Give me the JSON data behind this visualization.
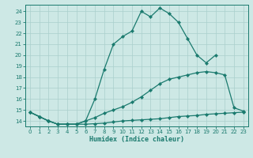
{
  "line1_x": [
    0,
    1,
    2,
    3,
    4,
    5,
    6,
    7,
    8,
    9,
    10,
    11,
    12,
    13,
    14,
    15,
    16,
    17,
    18,
    19,
    20
  ],
  "line1_y": [
    14.8,
    14.4,
    14.0,
    13.7,
    13.7,
    13.7,
    14.0,
    16.0,
    18.7,
    21.0,
    21.7,
    22.2,
    24.0,
    23.5,
    24.3,
    23.8,
    23.0,
    21.5,
    20.0,
    19.3,
    20.0
  ],
  "line2_x": [
    0,
    1,
    2,
    3,
    4,
    5,
    6,
    7,
    8,
    9,
    10,
    11,
    12,
    13,
    14,
    15,
    16,
    17,
    18,
    19,
    20,
    21,
    22,
    23
  ],
  "line2_y": [
    14.8,
    14.4,
    14.0,
    13.7,
    13.7,
    13.7,
    14.0,
    14.3,
    14.7,
    15.0,
    15.3,
    15.7,
    16.2,
    16.8,
    17.4,
    17.8,
    18.0,
    18.2,
    18.4,
    18.5,
    18.4,
    18.2,
    15.2,
    14.9
  ],
  "line3_x": [
    0,
    1,
    2,
    3,
    4,
    5,
    6,
    7,
    8,
    9,
    10,
    11,
    12,
    13,
    14,
    15,
    16,
    17,
    18,
    19,
    20,
    21,
    22,
    23
  ],
  "line3_y": [
    14.8,
    14.4,
    14.0,
    13.7,
    13.7,
    13.7,
    13.7,
    13.75,
    13.8,
    13.9,
    14.0,
    14.05,
    14.1,
    14.15,
    14.2,
    14.3,
    14.4,
    14.45,
    14.5,
    14.6,
    14.65,
    14.7,
    14.75,
    14.8
  ],
  "color": "#1a7a6e",
  "bg_color": "#cde8e5",
  "grid_color": "#aacfcc",
  "xlabel": "Humidex (Indice chaleur)",
  "xlim": [
    -0.5,
    23.5
  ],
  "ylim": [
    13.5,
    24.6
  ],
  "yticks": [
    14,
    15,
    16,
    17,
    18,
    19,
    20,
    21,
    22,
    23,
    24
  ],
  "xticks": [
    0,
    1,
    2,
    3,
    4,
    5,
    6,
    7,
    8,
    9,
    10,
    11,
    12,
    13,
    14,
    15,
    16,
    17,
    18,
    19,
    20,
    21,
    22,
    23
  ],
  "tick_fontsize": 5.0,
  "xlabel_fontsize": 6.0,
  "marker_size": 2.2,
  "linewidth": 0.9
}
